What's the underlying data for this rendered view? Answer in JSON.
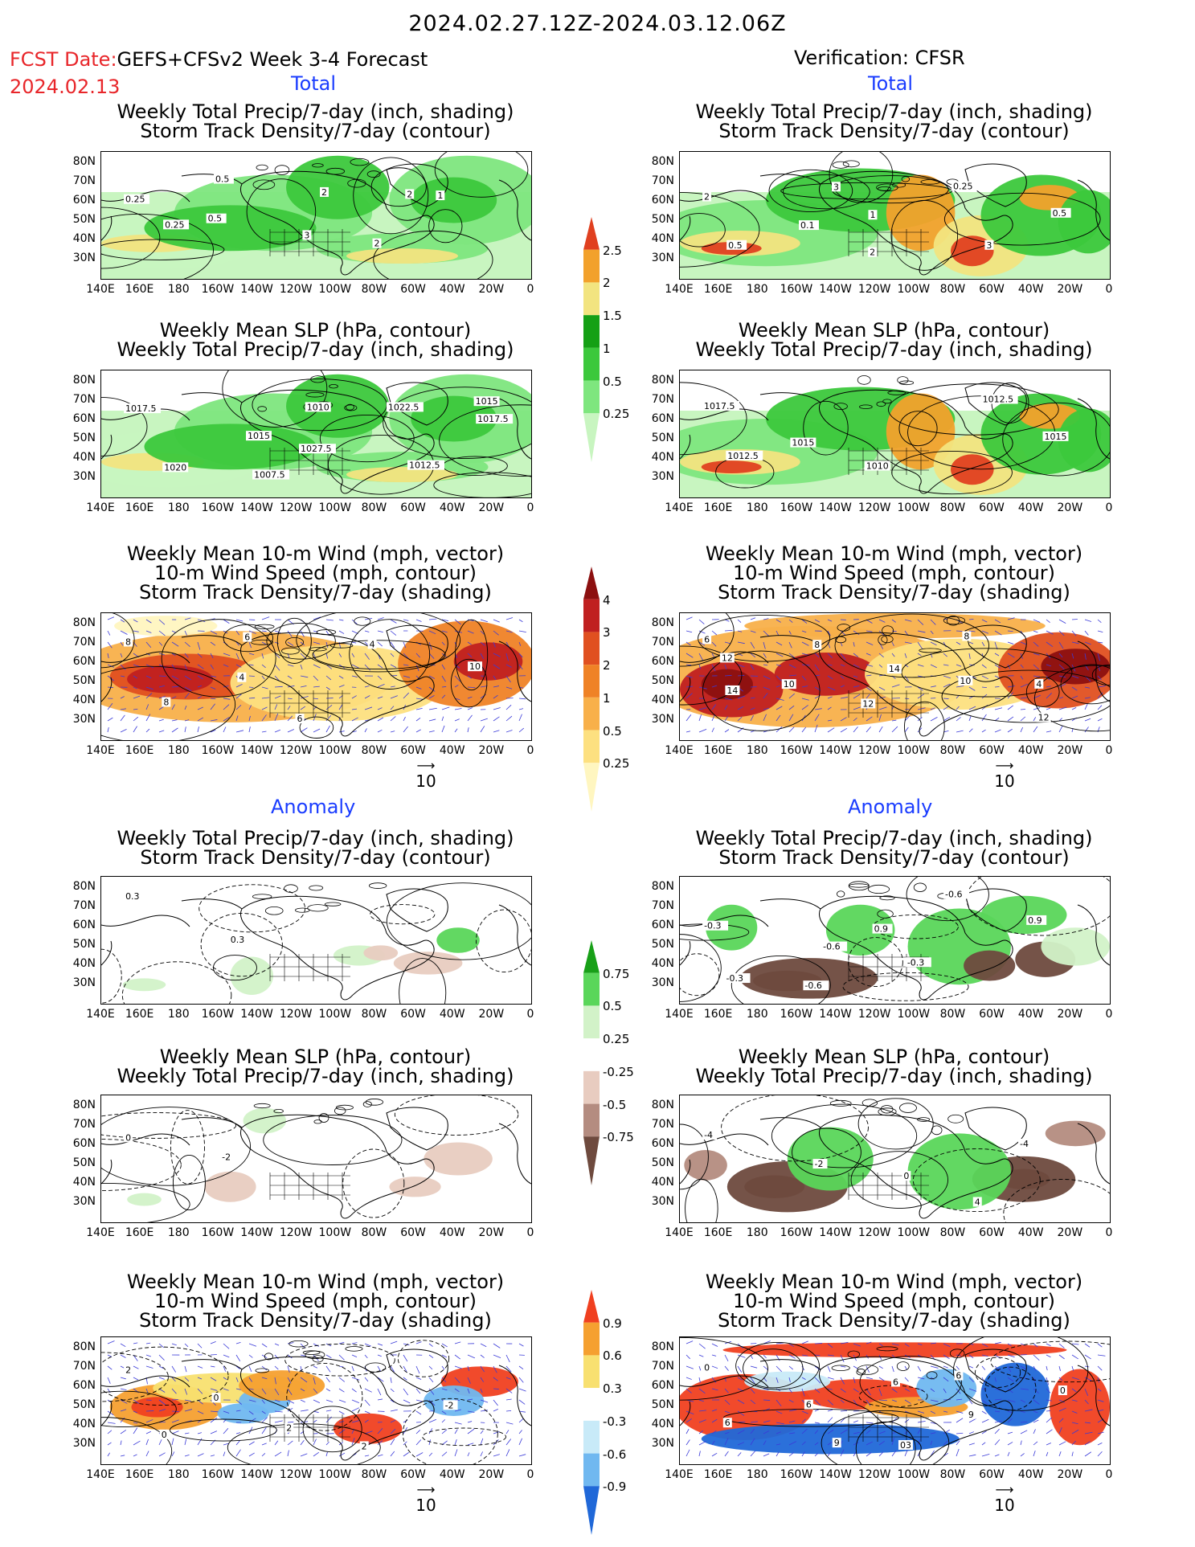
{
  "header": {
    "main_title": "2024.02.27.12Z-2024.03.12.06Z",
    "fcst_line1_label": "FCST Date:",
    "fcst_line1_model": "GEFS+CFSv2 Week 3-4 Forecast",
    "fcst_date": "2024.02.13",
    "verification": "Verification: CFSR"
  },
  "sections": {
    "total": "Total",
    "anomaly": "Anomaly"
  },
  "panel_titles": {
    "precip_storm": [
      "Weekly Total Precip/7-day (inch, shading)",
      "Storm Track Density/7-day (contour)"
    ],
    "slp_precip": [
      "Weekly Mean SLP (hPa, contour)",
      "Weekly Total Precip/7-day (inch, shading)"
    ],
    "wind_storm": [
      "Weekly Mean 10-m Wind (mph, vector)",
      "10-m Wind Speed (mph, contour)",
      "Storm Track Density/7-day (shading)"
    ]
  },
  "axes": {
    "lat_labels": [
      "80N",
      "70N",
      "60N",
      "50N",
      "40N",
      "30N"
    ],
    "lon_labels": [
      "140E",
      "160E",
      "180",
      "160W",
      "140W",
      "120W",
      "100W",
      "80W",
      "60W",
      "40W",
      "20W",
      "0"
    ]
  },
  "vector_ref": "10",
  "colorbars": {
    "precip_total": [
      "2.5",
      "2",
      "1.5",
      "1",
      "0.5",
      "0.25"
    ],
    "storm_total": [
      "4",
      "3",
      "2",
      "1",
      "0.5",
      "0.25"
    ],
    "precip_anom": [
      "0.75",
      "0.5",
      "0.25",
      "-0.25",
      "-0.5",
      "-0.75"
    ],
    "storm_anom": [
      "0.9",
      "0.6",
      "0.3",
      "-0.3",
      "-0.6",
      "-0.9"
    ]
  },
  "contour_labels": {
    "fc_precip_storm": [
      "0.25",
      "0.5",
      "3",
      "2",
      "1",
      "0.25",
      "0.5",
      "2",
      "2"
    ],
    "ob_precip_storm": [
      "2",
      "0.1",
      "2",
      "0.25",
      "0.5",
      "0.5",
      "3",
      "1",
      "3"
    ],
    "fc_slp": [
      "1017.5",
      "1015",
      "1027.5",
      "1022.5",
      "1017.5",
      "1020",
      "1007.5",
      "1010",
      "1012.5",
      "1015"
    ],
    "ob_slp": [
      "1017.5",
      "1015",
      "1010",
      "1012.5",
      "1015",
      "1012.5"
    ],
    "fc_wind": [
      "8",
      "4",
      "6",
      "4",
      "10",
      "8",
      "6"
    ],
    "ob_wind": [
      "6",
      "10",
      "12",
      "8",
      "4",
      "14",
      "8",
      "14",
      "10",
      "12",
      "12"
    ],
    "fc_precip_storm_anom": [
      "0.3",
      "0.3"
    ],
    "ob_precip_storm_anom": [
      "-0.3",
      "-0.6",
      "-0.3",
      "-0.6",
      "0.9",
      "-0.3",
      "-0.6",
      "0.9"
    ],
    "fc_slp_anom": [
      "0",
      "-2"
    ],
    "ob_slp_anom": [
      "-4",
      "-2",
      "0",
      "4",
      "-4"
    ],
    "fc_wind_anom": [
      "2",
      "0",
      "2",
      "2",
      "-2",
      "0"
    ],
    "ob_wind_anom": [
      "0",
      "6",
      "03",
      "6",
      "0",
      "6",
      "9",
      "6",
      "9"
    ]
  },
  "colors": {
    "precip": [
      "#c8f5c0",
      "#7ee67e",
      "#3cc83c",
      "#15a015",
      "#f2e480",
      "#f2a12c",
      "#e04020"
    ],
    "storm": [
      "#fff6c0",
      "#fde080",
      "#f8b04a",
      "#ef8226",
      "#e05020",
      "#c02020",
      "#8c1010"
    ],
    "precip_anom_pos": [
      "#d2f2c8",
      "#5ad65a",
      "#18a018"
    ],
    "precip_anom_neg": [
      "#e8ccc0",
      "#b48c80",
      "#6e4a3e"
    ],
    "storm_anom_pos": [
      "#f8e070",
      "#f5a030",
      "#f04020"
    ],
    "storm_anom_neg": [
      "#c8eaf8",
      "#70b8f0",
      "#2068d8"
    ],
    "land": "#000000",
    "vector": "#3a3ad8"
  }
}
